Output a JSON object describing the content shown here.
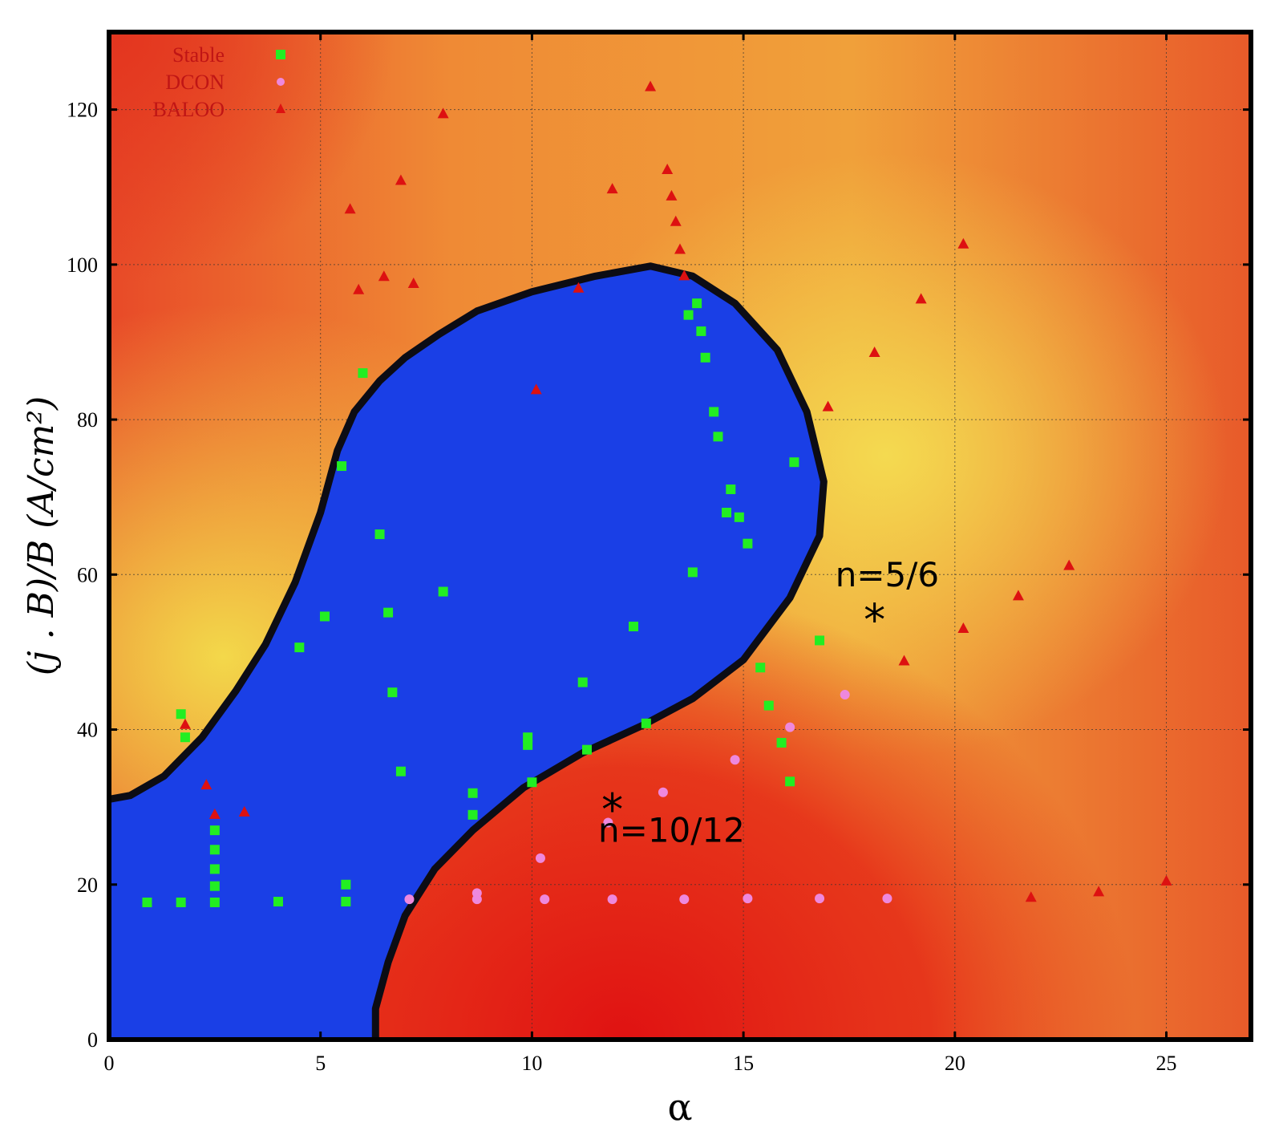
{
  "chart_data": {
    "type": "scatter",
    "xlabel": "α",
    "ylabel": "(j . B)/B (A/cm²)",
    "xlim": [
      0,
      27
    ],
    "ylim": [
      0,
      130
    ],
    "x_ticks": [
      "0",
      "5",
      "10",
      "15",
      "20",
      "25"
    ],
    "y_ticks": [
      "0",
      "20",
      "40",
      "60",
      "80",
      "100",
      "120"
    ],
    "grid": true,
    "legend_placement": "top-left",
    "background": "color map: red (low) to yellow (high), with blue stable region bounded by black contour",
    "stable_region": {
      "color": "#1a3fe6",
      "boundary": [
        [
          0,
          31
        ],
        [
          0.5,
          31.5
        ],
        [
          1.3,
          34
        ],
        [
          2.2,
          39
        ],
        [
          3,
          45
        ],
        [
          3.7,
          51
        ],
        [
          4.4,
          59
        ],
        [
          5,
          68
        ],
        [
          5.4,
          76
        ],
        [
          5.8,
          81
        ],
        [
          6.4,
          85
        ],
        [
          7,
          88
        ],
        [
          7.8,
          91
        ],
        [
          8.7,
          94
        ],
        [
          10,
          96.5
        ],
        [
          11.5,
          98.5
        ],
        [
          12.8,
          99.8
        ],
        [
          13.8,
          98.5
        ],
        [
          14.8,
          95
        ],
        [
          15.8,
          89
        ],
        [
          16.5,
          81
        ],
        [
          16.9,
          72
        ],
        [
          16.8,
          65
        ],
        [
          16.1,
          57
        ],
        [
          15,
          49
        ],
        [
          13.8,
          44
        ],
        [
          12.6,
          40.5
        ],
        [
          11.2,
          37
        ],
        [
          9.8,
          32.5
        ],
        [
          8.6,
          27
        ],
        [
          7.7,
          22
        ],
        [
          7.0,
          16
        ],
        [
          6.6,
          10
        ],
        [
          6.3,
          4
        ],
        [
          6.3,
          0
        ],
        [
          0,
          0
        ]
      ]
    },
    "series": [
      {
        "name": "Stable",
        "color": "#22ee22",
        "marker": "square",
        "points": [
          [
            1.7,
            42
          ],
          [
            1.8,
            39
          ],
          [
            0.9,
            17.7
          ],
          [
            1.7,
            17.7
          ],
          [
            2.5,
            27
          ],
          [
            2.5,
            24.5
          ],
          [
            2.5,
            22
          ],
          [
            2.5,
            19.8
          ],
          [
            2.5,
            17.7
          ],
          [
            4,
            17.8
          ],
          [
            4.5,
            50.6
          ],
          [
            5.1,
            54.6
          ],
          [
            5.5,
            74
          ],
          [
            5.6,
            20
          ],
          [
            5.6,
            17.8
          ],
          [
            6,
            86
          ],
          [
            6.4,
            65.2
          ],
          [
            6.6,
            55.1
          ],
          [
            6.7,
            44.8
          ],
          [
            6.9,
            34.6
          ],
          [
            7.9,
            57.8
          ],
          [
            8.6,
            31.8
          ],
          [
            8.6,
            29
          ],
          [
            9.9,
            39
          ],
          [
            9.9,
            38
          ],
          [
            10,
            33.2
          ],
          [
            11.2,
            46.1
          ],
          [
            11.3,
            37.4
          ],
          [
            12.4,
            53.3
          ],
          [
            12.7,
            40.8
          ],
          [
            13.7,
            93.5
          ],
          [
            13.9,
            95
          ],
          [
            14,
            91.4
          ],
          [
            14.1,
            88
          ],
          [
            14.3,
            81
          ],
          [
            14.4,
            77.8
          ],
          [
            14.6,
            68
          ],
          [
            14.7,
            71
          ],
          [
            14.9,
            67.4
          ],
          [
            15.1,
            64
          ],
          [
            13.8,
            60.3
          ],
          [
            15.4,
            48
          ],
          [
            15.6,
            43.1
          ],
          [
            15.9,
            38.3
          ],
          [
            16.1,
            33.3
          ],
          [
            16.2,
            74.5
          ],
          [
            16.8,
            51.5
          ]
        ]
      },
      {
        "name": "DCON",
        "color": "#ee88dd",
        "marker": "circle",
        "points": [
          [
            7.1,
            18.1
          ],
          [
            8.7,
            18.9
          ],
          [
            8.7,
            18.1
          ],
          [
            10.2,
            23.4
          ],
          [
            10.3,
            18.1
          ],
          [
            11.8,
            28
          ],
          [
            11.9,
            18.1
          ],
          [
            13.1,
            31.9
          ],
          [
            13.6,
            18.1
          ],
          [
            14.8,
            36.1
          ],
          [
            15.1,
            18.2
          ],
          [
            16.1,
            40.3
          ],
          [
            16.8,
            18.2
          ],
          [
            17.4,
            44.5
          ],
          [
            18.4,
            18.2
          ]
        ]
      },
      {
        "name": "BALOO",
        "color": "#dd1111",
        "marker": "triangle",
        "points": [
          [
            1.8,
            40.6
          ],
          [
            2.3,
            32.8
          ],
          [
            2.5,
            29
          ],
          [
            3.2,
            29.3
          ],
          [
            5.7,
            107.1
          ],
          [
            5.9,
            96.7
          ],
          [
            6.5,
            98.4
          ],
          [
            6.9,
            110.8
          ],
          [
            7.2,
            97.5
          ],
          [
            7.9,
            119.4
          ],
          [
            10.1,
            83.8
          ],
          [
            11.1,
            96.9
          ],
          [
            11.9,
            109.7
          ],
          [
            12.8,
            122.9
          ],
          [
            13.2,
            112.2
          ],
          [
            13.3,
            108.8
          ],
          [
            13.4,
            105.5
          ],
          [
            13.5,
            101.9
          ],
          [
            13.6,
            98.5
          ],
          [
            17,
            81.6
          ],
          [
            18.1,
            88.6
          ],
          [
            18.8,
            48.8
          ],
          [
            19.2,
            95.5
          ],
          [
            20.2,
            102.6
          ],
          [
            20.2,
            53
          ],
          [
            21.5,
            57.2
          ],
          [
            21.8,
            18.3
          ],
          [
            22.7,
            61.1
          ],
          [
            23.4,
            19
          ],
          [
            25,
            20.4
          ]
        ]
      }
    ],
    "annotations": [
      {
        "text": "n=5/6",
        "x": 18.4,
        "y": 58.5,
        "marker_x": 18.1,
        "marker_y": 54.5
      },
      {
        "text": "n=10/12",
        "x": 13.3,
        "y": 25.5,
        "marker_x": 11.9,
        "marker_y": 30
      }
    ],
    "colors": {
      "stable_fill": "#1a3fe6",
      "boundary": "#0c0c14",
      "low": "#e41a14",
      "high": "#f0d44a"
    }
  }
}
